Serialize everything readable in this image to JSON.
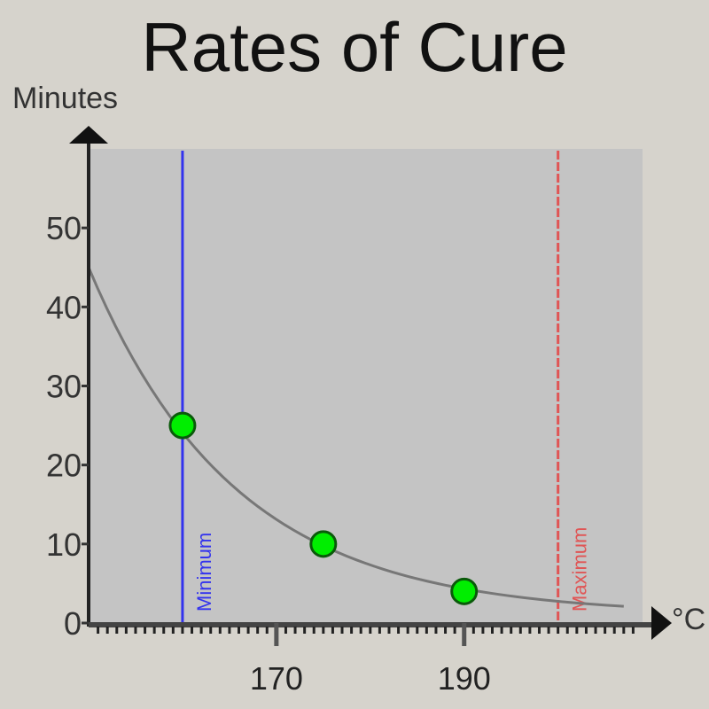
{
  "chart_data": {
    "type": "scatter",
    "title": "Rates of Cure",
    "ylabel": "Minutes",
    "xlabel": "°C",
    "xlim": [
      150,
      209
    ],
    "ylim": [
      0,
      60
    ],
    "yticks": [
      0,
      10,
      20,
      30,
      40,
      50
    ],
    "xticks": [
      170,
      190
    ],
    "grid": false,
    "points": [
      {
        "x": 160,
        "y": 25
      },
      {
        "x": 175,
        "y": 10
      },
      {
        "x": 190,
        "y": 4
      }
    ],
    "curve": {
      "x": [
        150,
        160,
        175,
        190,
        207
      ],
      "y": [
        45,
        24,
        10,
        4,
        1.5
      ]
    },
    "reference_lines": [
      {
        "x": 160,
        "label": "Minimum",
        "color": "#3333ee"
      },
      {
        "x": 200,
        "label": "Maximum",
        "color": "#e05555",
        "style": "dashed"
      }
    ],
    "colors": {
      "plot_bg": "#c4c4c4",
      "point": "#00ee00",
      "curve": "#777777"
    }
  }
}
